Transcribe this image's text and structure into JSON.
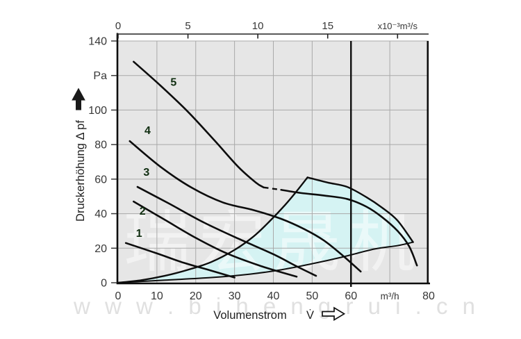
{
  "watermark": {
    "brand_cn": "恒瑞宏晟机电",
    "brand_url": "w w w . b i h e n g r u i . c n"
  },
  "axes": {
    "left": {
      "title": "Druckerhöhung Δ pf",
      "range": [
        0,
        140
      ],
      "ticks": [
        {
          "v": 140,
          "label": "140"
        },
        {
          "v": 120,
          "label": "Pa"
        },
        {
          "v": 100,
          "label": "100"
        },
        {
          "v": 80,
          "label": "80"
        },
        {
          "v": 60,
          "label": "60"
        },
        {
          "v": 40,
          "label": "40"
        },
        {
          "v": 20,
          "label": "20"
        },
        {
          "v": 0,
          "label": "0"
        }
      ]
    },
    "bottom": {
      "title": "Volumenstrom",
      "flow_symbol": "V̇",
      "range": [
        0,
        80
      ],
      "ticks": [
        {
          "v": 0,
          "label": "0"
        },
        {
          "v": 10,
          "label": "10"
        },
        {
          "v": 20,
          "label": "20"
        },
        {
          "v": 30,
          "label": "30"
        },
        {
          "v": 40,
          "label": "40"
        },
        {
          "v": 50,
          "label": "50"
        },
        {
          "v": 60,
          "label": "60"
        },
        {
          "v": 70,
          "label": "m³/h",
          "small": true
        },
        {
          "v": 80,
          "label": "80"
        }
      ]
    },
    "top": {
      "range": [
        0,
        20
      ],
      "ticks": [
        {
          "v": 0,
          "label": "0"
        },
        {
          "v": 5,
          "label": "5"
        },
        {
          "v": 10,
          "label": "10"
        },
        {
          "v": 15,
          "label": "15"
        },
        {
          "v": 20,
          "label": "x10⁻³m³/s",
          "small": true
        }
      ]
    }
  },
  "chart_data": {
    "type": "line",
    "title": "",
    "xlabel": "Volumenstrom V̇",
    "ylabel": "Druckerhöhung Δ pf",
    "x_unit_bottom": "m³/h",
    "x_unit_top": "x10⁻³m³/s",
    "y_unit": "Pa",
    "xlim": [
      0,
      80
    ],
    "ylim": [
      0,
      140
    ],
    "grid": true,
    "marker_line_x": 60,
    "series": [
      {
        "name": "1",
        "label_at": [
          4.6,
          26.5
        ],
        "points": [
          [
            2,
            23
          ],
          [
            10,
            17
          ],
          [
            17,
            11.5
          ],
          [
            24,
            7
          ],
          [
            30,
            3
          ]
        ]
      },
      {
        "name": "2",
        "label_at": [
          5.5,
          39.5
        ],
        "points": [
          [
            4,
            47
          ],
          [
            12,
            36.5
          ],
          [
            20,
            26
          ],
          [
            28,
            17
          ],
          [
            37,
            9.5
          ],
          [
            46,
            3.5
          ]
        ]
      },
      {
        "name": "3",
        "label_at": [
          6.5,
          62
        ],
        "points": [
          [
            5,
            55.5
          ],
          [
            13,
            46
          ],
          [
            22,
            35
          ],
          [
            31,
            25.5
          ],
          [
            40,
            16.5
          ],
          [
            46,
            9.5
          ],
          [
            51,
            4
          ]
        ]
      },
      {
        "name": "4",
        "label_at": [
          6.8,
          86
        ],
        "points": [
          [
            3,
            82
          ],
          [
            11,
            67
          ],
          [
            19,
            55
          ],
          [
            27,
            46.5
          ],
          [
            35,
            42
          ],
          [
            42,
            37
          ],
          [
            48,
            31
          ],
          [
            53,
            24.5
          ],
          [
            58,
            15.5
          ],
          [
            62.5,
            6.5
          ]
        ]
      },
      {
        "name": "5",
        "label_at": [
          13.5,
          114
        ],
        "points": [
          [
            4,
            128
          ],
          [
            11,
            114
          ],
          [
            18,
            99
          ],
          [
            25,
            82
          ],
          [
            31,
            67
          ],
          [
            35.5,
            58
          ],
          [
            37.5,
            55.2
          ]
        ],
        "dash_points": [
          [
            37.5,
            55.2
          ],
          [
            42,
            53.8
          ]
        ],
        "tail_points": [
          [
            42,
            53.8
          ],
          [
            47,
            52
          ],
          [
            53,
            50.5
          ],
          [
            59,
            48.5
          ],
          [
            64,
            44
          ],
          [
            68,
            38
          ],
          [
            72,
            30
          ],
          [
            75,
            21
          ],
          [
            77,
            10
          ]
        ]
      }
    ],
    "operating_envelope": {
      "left": [
        [
          0,
          0
        ],
        [
          6,
          1.5
        ],
        [
          12,
          4
        ],
        [
          18,
          7.5
        ],
        [
          24,
          12
        ],
        [
          30,
          19
        ],
        [
          35,
          27
        ],
        [
          39,
          35.5
        ],
        [
          43,
          45
        ],
        [
          46,
          53
        ],
        [
          48.8,
          61
        ]
      ],
      "top": [
        [
          48.8,
          61
        ],
        [
          54,
          58
        ],
        [
          59,
          55.5
        ],
        [
          64,
          49.5
        ],
        [
          68,
          43.5
        ],
        [
          72,
          36
        ],
        [
          76,
          23.5
        ]
      ],
      "bottom": [
        [
          0,
          0
        ],
        [
          12,
          1.5
        ],
        [
          24,
          3
        ],
        [
          34,
          5
        ],
        [
          42,
          7.5
        ],
        [
          50,
          11
        ],
        [
          58,
          15
        ],
        [
          66,
          19.5
        ],
        [
          72,
          21.5
        ],
        [
          76,
          23.5
        ]
      ]
    }
  },
  "colors": {
    "plot_bg": "#e6e6e6",
    "grid": "#a9a9a9",
    "curve": "#0d0d0d",
    "envelope_fill": "#d5f3f3",
    "marker_line": "#0d0d0d",
    "tick_text": "#373737",
    "curve_label": "#0f2d10",
    "watermark_gray": "#e0e0e0"
  }
}
